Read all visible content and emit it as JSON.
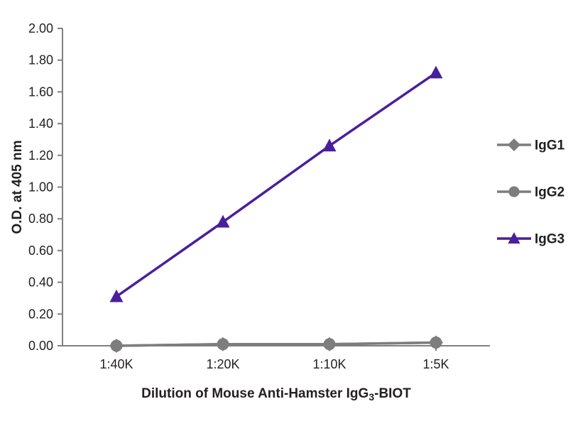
{
  "chart_data": {
    "type": "line",
    "title": "",
    "categories": [
      "1:40K",
      "1:20K",
      "1:10K",
      "1:5K"
    ],
    "series": [
      {
        "name": "IgG1",
        "marker": "diamond",
        "color": "#7d7d7d",
        "values": [
          0.0,
          0.01,
          0.01,
          0.02
        ]
      },
      {
        "name": "IgG2",
        "marker": "circle",
        "color": "#7d7d7d",
        "values": [
          0.0,
          0.01,
          0.01,
          0.02
        ]
      },
      {
        "name": "IgG3",
        "marker": "triangle",
        "color": "#4a1f9c",
        "values": [
          0.31,
          0.78,
          1.26,
          1.72
        ]
      }
    ],
    "ylabel": "O.D. at 405 nm",
    "xlabel_parts": {
      "pre": "Dilution of Mouse Anti-Hamster IgG",
      "sub": "3",
      "post": "-BIOT"
    },
    "ylim": [
      0,
      2.0
    ],
    "ytick_step": 0.2,
    "ytick_format_decimals": 2,
    "grid": false,
    "legend_position": "right",
    "axis_color": "#808080",
    "text_color": "#231f20"
  }
}
